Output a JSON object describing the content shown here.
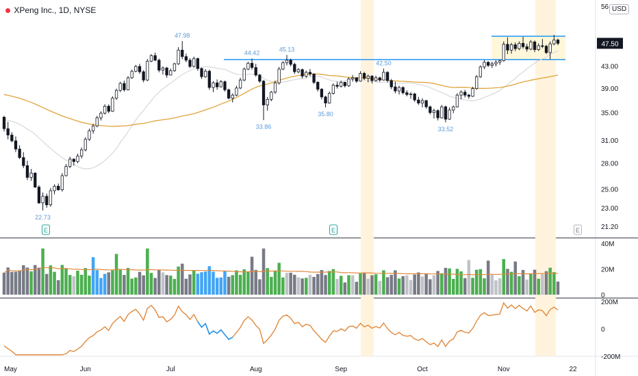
{
  "header": {
    "symbol_title": "XPeng Inc., 1D, NYSE",
    "currency": "USD"
  },
  "colors": {
    "up": "#ffffff",
    "down": "#131722",
    "ma50": "#e0a33a",
    "ma21": "#d8d8dc",
    "resistance": "#2196f3",
    "box_fill": "#fff7d9",
    "shade": "#fff3dd",
    "vol_up": "#4caf50",
    "vol_down": "#787b86",
    "vol_light": "#c0c2c8",
    "vol_blue": "#42a5f5",
    "rs_line": "#e0883a",
    "rs_blue": "#2196f3",
    "label_blue": "#5b9ad8",
    "price_tag": "#131722"
  },
  "chart_data": {
    "type": "candlestick",
    "title": "XPeng Inc., 1D, NYSE",
    "price_axis": {
      "scale": "log",
      "ylim": [
        20.2,
        57.5
      ],
      "ticks": [
        "56.00",
        "47.50",
        "43.00",
        "39.00",
        "35.00",
        "31.00",
        "28.00",
        "25.00",
        "23.00",
        "21.20"
      ]
    },
    "x_axis": {
      "ticks": [
        "May",
        "Jun",
        "Jul",
        "Aug",
        "Sep",
        "Oct",
        "Nov",
        "22"
      ]
    },
    "last_price": "47.50",
    "candles": [
      [
        34.3,
        34.5,
        32.2,
        32.6
      ],
      [
        32.6,
        33.6,
        31.1,
        31.7
      ],
      [
        31.7,
        32.1,
        30.7,
        30.9
      ],
      [
        30.9,
        31.5,
        29.4,
        29.8
      ],
      [
        29.8,
        30.3,
        28.5,
        28.7
      ],
      [
        28.7,
        29.4,
        27.4,
        27.7
      ],
      [
        27.7,
        28.3,
        26.0,
        26.3
      ],
      [
        26.3,
        27.3,
        25.9,
        26.8
      ],
      [
        26.8,
        26.9,
        25.1,
        25.2
      ],
      [
        25.2,
        25.4,
        23.4,
        23.5
      ],
      [
        23.5,
        24.6,
        22.73,
        24.2
      ],
      [
        24.2,
        24.5,
        23.0,
        23.3
      ],
      [
        23.3,
        25.1,
        23.1,
        24.8
      ],
      [
        24.8,
        25.5,
        24.4,
        25.3
      ],
      [
        25.3,
        25.6,
        24.8,
        24.9
      ],
      [
        24.9,
        26.8,
        24.7,
        26.5
      ],
      [
        26.5,
        27.9,
        26.4,
        27.6
      ],
      [
        27.6,
        28.8,
        27.4,
        28.5
      ],
      [
        28.5,
        28.6,
        27.7,
        28.2
      ],
      [
        28.2,
        29.2,
        28.0,
        28.9
      ],
      [
        28.9,
        30.0,
        28.6,
        29.7
      ],
      [
        29.7,
        31.4,
        29.5,
        31.1
      ],
      [
        31.1,
        32.6,
        30.9,
        32.3
      ],
      [
        32.3,
        33.3,
        31.9,
        33.0
      ],
      [
        33.0,
        34.5,
        32.8,
        34.2
      ],
      [
        34.2,
        35.2,
        33.8,
        34.9
      ],
      [
        34.9,
        36.3,
        34.7,
        36.0
      ],
      [
        36.0,
        36.3,
        34.9,
        35.2
      ],
      [
        35.2,
        37.6,
        35.1,
        37.3
      ],
      [
        37.3,
        38.9,
        37.0,
        38.6
      ],
      [
        38.6,
        40.1,
        38.3,
        39.8
      ],
      [
        39.8,
        40.3,
        38.4,
        38.7
      ],
      [
        38.7,
        41.1,
        38.6,
        40.8
      ],
      [
        40.8,
        42.3,
        40.6,
        42.0
      ],
      [
        42.0,
        43.2,
        41.8,
        42.9
      ],
      [
        42.9,
        43.4,
        41.5,
        41.9
      ],
      [
        41.9,
        42.2,
        40.0,
        40.4
      ],
      [
        40.4,
        44.3,
        40.2,
        43.9
      ],
      [
        43.9,
        45.3,
        43.7,
        45.0
      ],
      [
        45.0,
        45.6,
        43.9,
        44.1
      ],
      [
        44.1,
        44.4,
        41.8,
        42.2
      ],
      [
        42.2,
        42.9,
        41.4,
        42.6
      ],
      [
        42.6,
        42.8,
        40.8,
        41.3
      ],
      [
        41.3,
        42.5,
        41.2,
        42.1
      ],
      [
        42.1,
        43.6,
        41.9,
        43.4
      ],
      [
        43.4,
        46.7,
        43.2,
        46.1
      ],
      [
        46.1,
        47.98,
        44.3,
        44.8
      ],
      [
        44.8,
        45.4,
        43.7,
        44.1
      ],
      [
        44.1,
        44.5,
        42.6,
        42.9
      ],
      [
        42.9,
        44.8,
        42.7,
        44.4
      ],
      [
        44.4,
        44.6,
        42.1,
        42.5
      ],
      [
        42.5,
        42.7,
        40.6,
        41.0
      ],
      [
        41.0,
        42.4,
        40.8,
        42.0
      ],
      [
        42.0,
        42.3,
        38.7,
        39.1
      ],
      [
        39.1,
        40.2,
        38.3,
        39.9
      ],
      [
        39.9,
        40.5,
        38.7,
        39.2
      ],
      [
        39.2,
        40.4,
        39.1,
        40.1
      ],
      [
        40.1,
        40.3,
        38.4,
        38.7
      ],
      [
        38.7,
        38.9,
        37.1,
        37.3
      ],
      [
        37.3,
        38.1,
        36.6,
        37.8
      ],
      [
        37.8,
        39.4,
        37.6,
        39.0
      ],
      [
        39.0,
        40.8,
        38.8,
        40.4
      ],
      [
        40.4,
        42.7,
        40.2,
        42.4
      ],
      [
        42.4,
        43.8,
        42.2,
        43.5
      ],
      [
        43.5,
        44.42,
        42.3,
        42.7
      ],
      [
        42.7,
        43.4,
        41.0,
        41.3
      ],
      [
        41.3,
        41.5,
        39.9,
        40.2
      ],
      [
        40.2,
        40.4,
        33.86,
        36.2
      ],
      [
        36.2,
        37.5,
        35.3,
        37.1
      ],
      [
        37.1,
        38.5,
        36.8,
        38.3
      ],
      [
        38.3,
        40.3,
        38.0,
        39.9
      ],
      [
        39.9,
        42.8,
        39.6,
        42.4
      ],
      [
        42.4,
        43.9,
        42.2,
        43.6
      ],
      [
        43.6,
        45.13,
        43.1,
        44.1
      ],
      [
        44.1,
        44.4,
        42.9,
        43.3
      ],
      [
        43.3,
        43.6,
        41.5,
        41.9
      ],
      [
        41.9,
        42.6,
        41.6,
        42.3
      ],
      [
        42.3,
        42.5,
        40.7,
        41.1
      ],
      [
        41.1,
        42.1,
        40.8,
        41.8
      ],
      [
        41.8,
        42.4,
        41.1,
        41.5
      ],
      [
        41.5,
        41.6,
        39.7,
        40.0
      ],
      [
        40.0,
        40.2,
        38.4,
        38.8
      ],
      [
        38.8,
        39.0,
        37.1,
        37.5
      ],
      [
        37.5,
        37.7,
        35.8,
        36.5
      ],
      [
        36.5,
        38.4,
        36.4,
        38.1
      ],
      [
        38.1,
        39.8,
        37.9,
        39.5
      ],
      [
        39.5,
        40.1,
        38.9,
        39.3
      ],
      [
        39.3,
        40.3,
        39.1,
        40.0
      ],
      [
        40.0,
        40.1,
        39.1,
        39.4
      ],
      [
        39.4,
        40.9,
        39.2,
        40.6
      ],
      [
        40.6,
        41.3,
        40.1,
        40.8
      ],
      [
        40.8,
        40.9,
        39.9,
        40.2
      ],
      [
        40.2,
        42.0,
        40.1,
        41.6
      ],
      [
        41.6,
        41.9,
        40.4,
        40.7
      ],
      [
        40.7,
        41.4,
        40.0,
        41.1
      ],
      [
        41.1,
        41.3,
        39.8,
        40.3
      ],
      [
        40.3,
        41.2,
        40.1,
        40.8
      ],
      [
        40.8,
        41.0,
        40.1,
        40.4
      ],
      [
        40.4,
        42.5,
        40.3,
        41.8
      ],
      [
        41.8,
        42.0,
        40.0,
        40.3
      ],
      [
        40.3,
        40.6,
        38.8,
        39.2
      ],
      [
        39.2,
        40.1,
        38.1,
        38.5
      ],
      [
        38.5,
        39.4,
        37.9,
        39.1
      ],
      [
        39.1,
        39.3,
        37.9,
        38.2
      ],
      [
        38.2,
        38.6,
        37.6,
        37.9
      ],
      [
        37.9,
        38.3,
        37.2,
        38.0
      ],
      [
        38.0,
        38.2,
        36.7,
        37.0
      ],
      [
        37.0,
        37.5,
        36.2,
        36.5
      ],
      [
        36.5,
        37.3,
        35.8,
        36.9
      ],
      [
        36.9,
        37.0,
        35.6,
        35.9
      ],
      [
        35.9,
        36.1,
        34.7,
        35.0
      ],
      [
        35.0,
        35.6,
        34.1,
        35.3
      ],
      [
        35.3,
        35.5,
        33.8,
        34.2
      ],
      [
        34.2,
        36.2,
        34.1,
        35.9
      ],
      [
        35.9,
        36.1,
        33.52,
        34.0
      ],
      [
        34.0,
        35.8,
        33.9,
        35.4
      ],
      [
        35.4,
        36.1,
        34.9,
        35.9
      ],
      [
        35.9,
        38.1,
        35.8,
        37.8
      ],
      [
        37.8,
        38.6,
        37.1,
        38.3
      ],
      [
        38.3,
        38.7,
        37.4,
        37.8
      ],
      [
        37.8,
        38.0,
        37.2,
        37.6
      ],
      [
        37.6,
        39.2,
        37.5,
        38.9
      ],
      [
        38.9,
        41.3,
        38.7,
        41.0
      ],
      [
        41.0,
        43.1,
        40.8,
        42.8
      ],
      [
        42.8,
        44.1,
        42.4,
        43.7
      ],
      [
        43.7,
        43.9,
        42.8,
        43.1
      ],
      [
        43.1,
        43.8,
        42.6,
        43.4
      ],
      [
        43.4,
        44.1,
        42.9,
        43.7
      ],
      [
        43.7,
        44.2,
        43.2,
        44.0
      ],
      [
        44.0,
        47.9,
        43.8,
        47.3
      ],
      [
        47.3,
        48.8,
        45.3,
        46.1
      ],
      [
        46.1,
        47.6,
        45.4,
        47.2
      ],
      [
        47.2,
        47.7,
        45.9,
        46.4
      ],
      [
        46.4,
        47.9,
        46.1,
        47.5
      ],
      [
        47.5,
        48.9,
        46.4,
        46.8
      ],
      [
        46.8,
        47.4,
        45.8,
        46.3
      ],
      [
        46.3,
        48.2,
        46.1,
        47.8
      ],
      [
        47.8,
        48.1,
        45.7,
        46.2
      ],
      [
        46.2,
        47.5,
        45.9,
        47.0
      ],
      [
        47.0,
        48.4,
        46.5,
        46.9
      ],
      [
        46.9,
        47.2,
        45.3,
        45.6
      ],
      [
        45.6,
        47.9,
        44.3,
        47.4
      ],
      [
        47.4,
        49.3,
        47.1,
        48.2
      ],
      [
        48.2,
        48.5,
        47.1,
        47.5
      ]
    ],
    "volume_axis": {
      "ticks": [
        "40M",
        "20M",
        "0"
      ]
    },
    "rs_axis": {
      "ticks": [
        "200M",
        "0",
        "-200M"
      ]
    },
    "annotations": {
      "highs": [
        "47.98",
        "44.42",
        "45.13",
        "42.50"
      ],
      "lows": [
        "22.73",
        "33.86",
        "35.80",
        "33.52"
      ],
      "earnings_marker": "E"
    },
    "levels": {
      "resistance_top": 49.0,
      "resistance_bottom": 44.2
    }
  }
}
